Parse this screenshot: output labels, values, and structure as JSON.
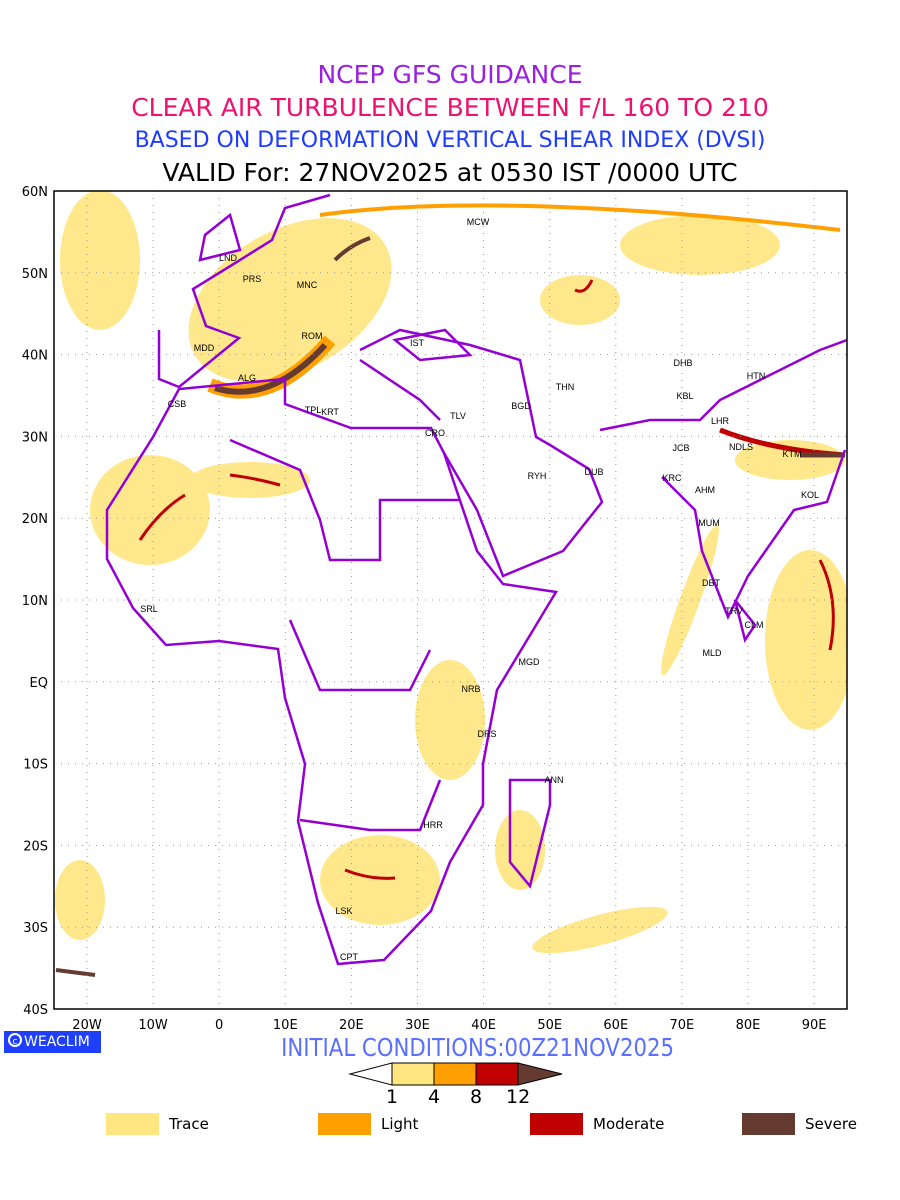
{
  "header": {
    "line1": "NCEP GFS GUIDANCE",
    "line2": "CLEAR AIR TURBULENCE BETWEEN F/L 160 TO 210",
    "line3": "BASED ON DEFORMATION VERTICAL SHEAR INDEX (DVSI)",
    "line4": "VALID For: 27NOV2025 at 0530 IST /0000 UTC"
  },
  "axes": {
    "lat_labels": [
      "60N",
      "50N",
      "40N",
      "30N",
      "20N",
      "10N",
      "EQ",
      "10S",
      "20S",
      "30S",
      "40S"
    ],
    "lon_labels": [
      "20W",
      "10W",
      "0",
      "10E",
      "20E",
      "30E",
      "40E",
      "50E",
      "60E",
      "70E",
      "80E",
      "90E"
    ]
  },
  "stations": [
    "MCW",
    "LND",
    "PRS",
    "MNC",
    "ROM",
    "MDD",
    "IST",
    "ALG",
    "CSB",
    "TPL",
    "KRT",
    "TLV",
    "CRO",
    "BGD",
    "THN",
    "DHB",
    "HTN",
    "KBL",
    "LHR",
    "JCB",
    "NDLS",
    "KTM",
    "RYH",
    "DUB",
    "KRC",
    "AHM",
    "KOL",
    "MUM",
    "DBT",
    "TRV",
    "CLM",
    "MLD",
    "SRL",
    "MGD",
    "NRB",
    "DRS",
    "ANN",
    "HRR",
    "LSK",
    "CPT"
  ],
  "footer": {
    "logo": "WEACLIM",
    "initial_conditions": "INITIAL CONDITIONS:00Z21NOV2025"
  },
  "colorbar": {
    "ticks": [
      "1",
      "4",
      "8",
      "12"
    ],
    "colors": [
      "#ffe680",
      "#ffa000",
      "#c00000",
      "#653b31"
    ]
  },
  "legend": [
    {
      "label": "Trace",
      "color": "#ffe680"
    },
    {
      "label": "Light",
      "color": "#ffa000"
    },
    {
      "label": "Moderate",
      "color": "#c00000"
    },
    {
      "label": "Severe",
      "color": "#653b31"
    }
  ],
  "colors": {
    "border": "#9400d3"
  }
}
